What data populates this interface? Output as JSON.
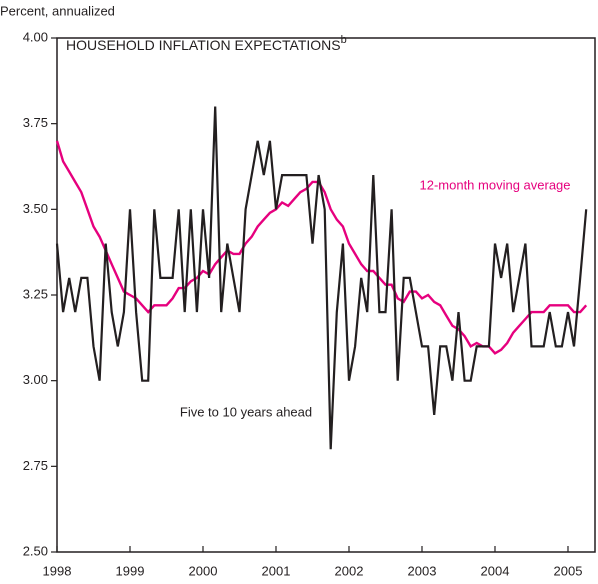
{
  "chart_data": {
    "type": "line",
    "title": "HOUSEHOLD INFLATION EXPECTATIONS",
    "title_note": "b",
    "y_label": "Percent, annualized",
    "x": [
      1998.0,
      1998.083,
      1998.167,
      1998.25,
      1998.333,
      1998.417,
      1998.5,
      1998.583,
      1998.667,
      1998.75,
      1998.833,
      1998.917,
      1999.0,
      1999.083,
      1999.167,
      1999.25,
      1999.333,
      1999.417,
      1999.5,
      1999.583,
      1999.667,
      1999.75,
      1999.833,
      1999.917,
      2000.0,
      2000.083,
      2000.167,
      2000.25,
      2000.333,
      2000.417,
      2000.5,
      2000.583,
      2000.667,
      2000.75,
      2000.833,
      2000.917,
      2001.0,
      2001.083,
      2001.167,
      2001.25,
      2001.333,
      2001.417,
      2001.5,
      2001.583,
      2001.667,
      2001.75,
      2001.833,
      2001.917,
      2002.0,
      2002.083,
      2002.167,
      2002.25,
      2002.333,
      2002.417,
      2002.5,
      2002.583,
      2002.667,
      2002.75,
      2002.833,
      2002.917,
      2003.0,
      2003.083,
      2003.167,
      2003.25,
      2003.333,
      2003.417,
      2003.5,
      2003.583,
      2003.667,
      2003.75,
      2003.833,
      2003.917,
      2004.0,
      2004.083,
      2004.167,
      2004.25,
      2004.333,
      2004.417,
      2004.5,
      2004.583,
      2004.667,
      2004.75,
      2004.833,
      2004.917,
      2005.0,
      2005.083,
      2005.167,
      2005.25
    ],
    "series": [
      {
        "name": "Five to 10 years ahead",
        "color": "#231f20",
        "width": 2.2,
        "values": [
          3.4,
          3.2,
          3.3,
          3.2,
          3.3,
          3.3,
          3.1,
          3.0,
          3.4,
          3.2,
          3.1,
          3.2,
          3.5,
          3.2,
          3.0,
          3.0,
          3.5,
          3.3,
          3.3,
          3.3,
          3.5,
          3.2,
          3.5,
          3.2,
          3.5,
          3.3,
          3.8,
          3.2,
          3.4,
          3.3,
          3.2,
          3.5,
          3.6,
          3.7,
          3.6,
          3.7,
          3.5,
          3.6,
          3.6,
          3.6,
          3.6,
          3.6,
          3.4,
          3.6,
          3.5,
          2.8,
          3.2,
          3.4,
          3.0,
          3.1,
          3.3,
          3.2,
          3.6,
          3.2,
          3.2,
          3.5,
          3.0,
          3.3,
          3.3,
          3.2,
          3.1,
          3.1,
          2.9,
          3.1,
          3.1,
          3.0,
          3.2,
          3.0,
          3.0,
          3.1,
          3.1,
          3.1,
          3.4,
          3.3,
          3.4,
          3.2,
          3.3,
          3.4,
          3.1,
          3.1,
          3.1,
          3.2,
          3.1,
          3.1,
          3.2,
          3.1,
          3.3,
          3.5
        ]
      },
      {
        "name": "12-month moving average",
        "color": "#e6007e",
        "width": 2.4,
        "values": [
          3.7,
          3.64,
          3.61,
          3.58,
          3.55,
          3.5,
          3.45,
          3.42,
          3.38,
          3.34,
          3.3,
          3.26,
          3.25,
          3.24,
          3.22,
          3.2,
          3.22,
          3.22,
          3.22,
          3.24,
          3.27,
          3.27,
          3.29,
          3.3,
          3.32,
          3.31,
          3.34,
          3.36,
          3.38,
          3.37,
          3.37,
          3.4,
          3.42,
          3.45,
          3.47,
          3.49,
          3.5,
          3.52,
          3.51,
          3.53,
          3.55,
          3.56,
          3.58,
          3.58,
          3.55,
          3.5,
          3.47,
          3.45,
          3.4,
          3.37,
          3.34,
          3.32,
          3.32,
          3.3,
          3.28,
          3.28,
          3.24,
          3.23,
          3.26,
          3.26,
          3.24,
          3.25,
          3.23,
          3.22,
          3.19,
          3.16,
          3.15,
          3.13,
          3.1,
          3.11,
          3.1,
          3.1,
          3.08,
          3.09,
          3.11,
          3.14,
          3.16,
          3.18,
          3.2,
          3.2,
          3.2,
          3.22,
          3.22,
          3.22,
          3.22,
          3.2,
          3.2,
          3.22
        ]
      }
    ],
    "xlim": [
      1998,
      2005.37
    ],
    "xticks": [
      1998,
      1999,
      2000,
      2001,
      2002,
      2003,
      2004,
      2005
    ],
    "ylim": [
      2.5,
      4.0
    ],
    "yticks": [
      {
        "value": 2.5,
        "label": "2.50"
      },
      {
        "value": 2.75,
        "label": "2.75"
      },
      {
        "value": 3.0,
        "label": "3.00"
      },
      {
        "value": 3.25,
        "label": "3.25"
      },
      {
        "value": 3.5,
        "label": "3.50"
      },
      {
        "value": 3.75,
        "label": "3.75"
      },
      {
        "value": 4.0,
        "label": "4.00"
      }
    ]
  }
}
